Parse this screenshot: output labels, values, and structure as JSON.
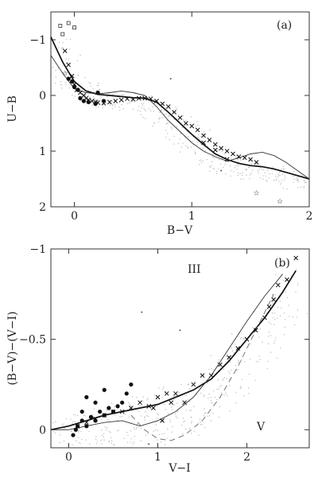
{
  "chart_data": [
    {
      "type": "scatter",
      "panel_label": "(a)",
      "xlabel": "B−V",
      "ylabel": "U−B",
      "xlim": [
        -0.2,
        2.0
      ],
      "ylim": [
        2.0,
        -1.5
      ],
      "y_inverted": true,
      "x_ticks": [
        {
          "value": 0,
          "label": "0"
        },
        {
          "value": 1,
          "label": "1"
        },
        {
          "value": 2,
          "label": "2"
        }
      ],
      "y_ticks": [
        {
          "value": -1,
          "label": "−1"
        },
        {
          "value": 0,
          "label": "0"
        },
        {
          "value": 1,
          "label": "1"
        },
        {
          "value": 2,
          "label": "2"
        }
      ],
      "curves": [
        {
          "style": "thick",
          "points": [
            [
              -0.2,
              -1.05
            ],
            [
              -0.1,
              -0.6
            ],
            [
              0.0,
              -0.25
            ],
            [
              0.1,
              -0.08
            ],
            [
              0.2,
              -0.02
            ],
            [
              0.3,
              0.0
            ],
            [
              0.4,
              0.02
            ],
            [
              0.5,
              0.04
            ],
            [
              0.6,
              0.05
            ],
            [
              0.7,
              0.12
            ],
            [
              0.8,
              0.3
            ],
            [
              0.9,
              0.5
            ],
            [
              1.0,
              0.7
            ],
            [
              1.1,
              0.88
            ],
            [
              1.2,
              1.05
            ],
            [
              1.3,
              1.15
            ],
            [
              1.4,
              1.22
            ],
            [
              1.5,
              1.26
            ],
            [
              1.6,
              1.28
            ],
            [
              1.7,
              1.32
            ],
            [
              1.8,
              1.38
            ],
            [
              1.9,
              1.44
            ],
            [
              2.0,
              1.5
            ]
          ]
        },
        {
          "style": "thin",
          "points": [
            [
              -0.2,
              -0.72
            ],
            [
              -0.1,
              -0.4
            ],
            [
              0.0,
              -0.12
            ],
            [
              0.1,
              -0.05
            ],
            [
              0.2,
              -0.03
            ],
            [
              0.3,
              -0.05
            ],
            [
              0.4,
              -0.08
            ],
            [
              0.5,
              -0.05
            ],
            [
              0.6,
              0.0
            ],
            [
              0.7,
              0.2
            ],
            [
              0.8,
              0.45
            ],
            [
              0.9,
              0.65
            ],
            [
              1.0,
              0.85
            ],
            [
              1.1,
              1.0
            ],
            [
              1.2,
              1.1
            ],
            [
              1.3,
              1.18
            ],
            [
              1.4,
              1.12
            ],
            [
              1.5,
              1.05
            ],
            [
              1.6,
              1.02
            ],
            [
              1.7,
              1.08
            ],
            [
              1.8,
              1.2
            ],
            [
              1.9,
              1.35
            ],
            [
              2.0,
              1.5
            ]
          ]
        }
      ],
      "x_marks": [
        [
          -0.08,
          -0.8
        ],
        [
          -0.05,
          -0.55
        ],
        [
          -0.02,
          -0.35
        ],
        [
          0.0,
          -0.2
        ],
        [
          0.02,
          -0.1
        ],
        [
          0.05,
          -0.05
        ],
        [
          0.08,
          0.0
        ],
        [
          0.1,
          0.05
        ],
        [
          0.12,
          0.08
        ],
        [
          0.15,
          0.1
        ],
        [
          0.18,
          0.12
        ],
        [
          0.2,
          0.13
        ],
        [
          0.25,
          0.14
        ],
        [
          0.3,
          0.12
        ],
        [
          0.35,
          0.1
        ],
        [
          0.4,
          0.08
        ],
        [
          0.45,
          0.06
        ],
        [
          0.5,
          0.07
        ],
        [
          0.55,
          0.05
        ],
        [
          0.6,
          0.05
        ],
        [
          0.65,
          0.06
        ],
        [
          0.7,
          0.1
        ],
        [
          0.75,
          0.15
        ],
        [
          0.8,
          0.2
        ],
        [
          0.85,
          0.3
        ],
        [
          0.9,
          0.4
        ],
        [
          0.95,
          0.5
        ],
        [
          1.0,
          0.55
        ],
        [
          1.05,
          0.62
        ],
        [
          1.1,
          0.72
        ],
        [
          1.15,
          0.8
        ],
        [
          1.2,
          0.88
        ],
        [
          1.25,
          0.95
        ],
        [
          1.3,
          1.0
        ],
        [
          1.35,
          1.05
        ],
        [
          1.4,
          1.1
        ],
        [
          1.45,
          1.12
        ],
        [
          1.5,
          1.15
        ],
        [
          1.55,
          1.2
        ],
        [
          1.3,
          1.15
        ],
        [
          1.2,
          0.98
        ],
        [
          1.1,
          0.85
        ]
      ],
      "dots": [
        [
          -0.05,
          -0.3
        ],
        [
          -0.02,
          -0.25
        ],
        [
          0.0,
          -0.15
        ],
        [
          0.03,
          -0.1
        ],
        [
          0.05,
          0.05
        ],
        [
          0.08,
          0.1
        ],
        [
          0.12,
          0.12
        ],
        [
          0.18,
          0.15
        ],
        [
          0.2,
          -0.05
        ],
        [
          0.25,
          0.1
        ]
      ],
      "open_squares": [
        [
          -0.12,
          -1.25
        ],
        [
          -0.1,
          -1.1
        ],
        [
          -0.05,
          -1.3
        ],
        [
          0.0,
          -1.22
        ]
      ],
      "stars": [
        [
          -0.08,
          -0.4
        ],
        [
          1.55,
          1.75
        ],
        [
          1.75,
          1.9
        ]
      ],
      "points": [
        [
          0.82,
          -0.3
        ],
        [
          1.25,
          1.35
        ]
      ]
    },
    {
      "type": "scatter",
      "panel_label": "(b)",
      "xlabel": "V−I",
      "ylabel": "(B−V)−(V−I)",
      "xlim": [
        -0.2,
        2.7
      ],
      "ylim": [
        0.1,
        -1.0
      ],
      "y_inverted": true,
      "x_ticks": [
        {
          "value": 0,
          "label": "0"
        },
        {
          "value": 1,
          "label": "1"
        },
        {
          "value": 2,
          "label": "2"
        }
      ],
      "y_ticks": [
        {
          "value": 0,
          "label": "0"
        },
        {
          "value": -0.5,
          "label": "−0.5"
        },
        {
          "value": -1,
          "label": "−1"
        }
      ],
      "curve_labels": [
        {
          "text": "III",
          "at": [
            1.48,
            0.02
          ]
        },
        {
          "text": "V",
          "at": [
            2.22,
            -0.93
          ]
        }
      ],
      "curves": [
        {
          "style": "thick",
          "points": [
            [
              -0.2,
              0.0
            ],
            [
              0.0,
              -0.02
            ],
            [
              0.2,
              -0.05
            ],
            [
              0.4,
              -0.08
            ],
            [
              0.6,
              -0.1
            ],
            [
              0.8,
              -0.12
            ],
            [
              1.0,
              -0.14
            ],
            [
              1.2,
              -0.18
            ],
            [
              1.4,
              -0.22
            ],
            [
              1.6,
              -0.28
            ],
            [
              1.8,
              -0.38
            ],
            [
              2.0,
              -0.5
            ],
            [
              2.2,
              -0.62
            ],
            [
              2.4,
              -0.76
            ],
            [
              2.55,
              -0.88
            ]
          ]
        },
        {
          "style": "thin",
          "points": [
            [
              -0.2,
              0.0
            ],
            [
              0.0,
              0.0
            ],
            [
              0.2,
              -0.02
            ],
            [
              0.4,
              -0.04
            ],
            [
              0.6,
              -0.05
            ],
            [
              0.8,
              -0.02
            ],
            [
              1.0,
              -0.05
            ],
            [
              1.2,
              -0.1
            ],
            [
              1.4,
              -0.18
            ],
            [
              1.6,
              -0.3
            ],
            [
              1.8,
              -0.45
            ],
            [
              2.0,
              -0.6
            ],
            [
              2.2,
              -0.74
            ],
            [
              2.4,
              -0.86
            ]
          ]
        },
        {
          "style": "dash",
          "points": [
            [
              0.7,
              -0.08
            ],
            [
              0.85,
              0.0
            ],
            [
              1.0,
              0.05
            ],
            [
              1.15,
              0.06
            ],
            [
              1.3,
              0.03
            ],
            [
              1.5,
              -0.05
            ],
            [
              1.7,
              -0.18
            ],
            [
              1.9,
              -0.35
            ],
            [
              2.1,
              -0.55
            ],
            [
              2.3,
              -0.75
            ]
          ]
        }
      ],
      "x_marks": [
        [
          0.1,
          -0.02
        ],
        [
          0.2,
          -0.04
        ],
        [
          0.3,
          -0.06
        ],
        [
          0.4,
          -0.08
        ],
        [
          0.5,
          -0.1
        ],
        [
          0.6,
          -0.1
        ],
        [
          0.7,
          -0.12
        ],
        [
          0.8,
          -0.15
        ],
        [
          0.9,
          -0.13
        ],
        [
          1.0,
          -0.18
        ],
        [
          1.1,
          -0.2
        ],
        [
          1.2,
          -0.2
        ],
        [
          1.3,
          -0.15
        ],
        [
          1.4,
          -0.25
        ],
        [
          1.5,
          -0.3
        ],
        [
          1.6,
          -0.3
        ],
        [
          1.7,
          -0.36
        ],
        [
          1.8,
          -0.4
        ],
        [
          1.9,
          -0.45
        ],
        [
          2.0,
          -0.5
        ],
        [
          2.1,
          -0.55
        ],
        [
          2.2,
          -0.62
        ],
        [
          2.25,
          -0.68
        ],
        [
          2.3,
          -0.72
        ],
        [
          2.35,
          -0.8
        ],
        [
          2.45,
          -0.83
        ],
        [
          2.55,
          -0.95
        ],
        [
          1.05,
          -0.05
        ],
        [
          0.95,
          -0.12
        ],
        [
          1.15,
          -0.15
        ]
      ],
      "dots": [
        [
          0.05,
          0.03
        ],
        [
          0.08,
          0.0
        ],
        [
          0.1,
          -0.02
        ],
        [
          0.15,
          -0.05
        ],
        [
          0.2,
          -0.02
        ],
        [
          0.25,
          -0.07
        ],
        [
          0.3,
          -0.05
        ],
        [
          0.35,
          -0.1
        ],
        [
          0.4,
          -0.08
        ],
        [
          0.45,
          -0.12
        ],
        [
          0.5,
          -0.1
        ],
        [
          0.55,
          -0.13
        ],
        [
          0.6,
          -0.15
        ],
        [
          0.65,
          -0.2
        ],
        [
          0.7,
          -0.25
        ],
        [
          0.2,
          -0.18
        ],
        [
          0.3,
          -0.15
        ],
        [
          0.4,
          -0.22
        ],
        [
          0.15,
          -0.1
        ]
      ],
      "points": [
        [
          0.9,
          0.08
        ],
        [
          1.25,
          -0.55
        ],
        [
          0.82,
          -0.65
        ]
      ]
    }
  ]
}
